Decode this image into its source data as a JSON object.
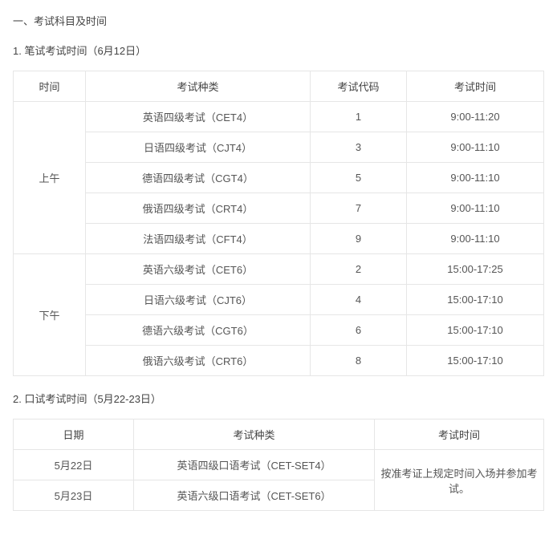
{
  "heading": "一、考试科目及时间",
  "section1": {
    "title": "1. 笔试考试时间（6月12日）",
    "headers": {
      "c1": "时间",
      "c2": "考试种类",
      "c3": "考试代码",
      "c4": "考试时间"
    },
    "morning_label": "上午",
    "afternoon_label": "下午",
    "morning": [
      {
        "type": "英语四级考试（CET4）",
        "code": "1",
        "time": "9:00-11:20"
      },
      {
        "type": "日语四级考试（CJT4）",
        "code": "3",
        "time": "9:00-11:10"
      },
      {
        "type": "德语四级考试（CGT4）",
        "code": "5",
        "time": "9:00-11:10"
      },
      {
        "type": "俄语四级考试（CRT4）",
        "code": "7",
        "time": "9:00-11:10"
      },
      {
        "type": "法语四级考试（CFT4）",
        "code": "9",
        "time": "9:00-11:10"
      }
    ],
    "afternoon": [
      {
        "type": "英语六级考试（CET6）",
        "code": "2",
        "time": "15:00-17:25"
      },
      {
        "type": "日语六级考试（CJT6）",
        "code": "4",
        "time": "15:00-17:10"
      },
      {
        "type": "德语六级考试（CGT6）",
        "code": "6",
        "time": "15:00-17:10"
      },
      {
        "type": "俄语六级考试（CRT6）",
        "code": "8",
        "time": "15:00-17:10"
      }
    ]
  },
  "section2": {
    "title": "2. 口试考试时间（5月22-23日）",
    "headers": {
      "c1": "日期",
      "c2": "考试种类",
      "c3": "考试时间"
    },
    "note": "按准考证上规定时间入场并参加考试。",
    "rows": [
      {
        "date": "5月22日",
        "type": "英语四级口语考试（CET-SET4）"
      },
      {
        "date": "5月23日",
        "type": "英语六级口语考试（CET-SET6）"
      }
    ]
  }
}
